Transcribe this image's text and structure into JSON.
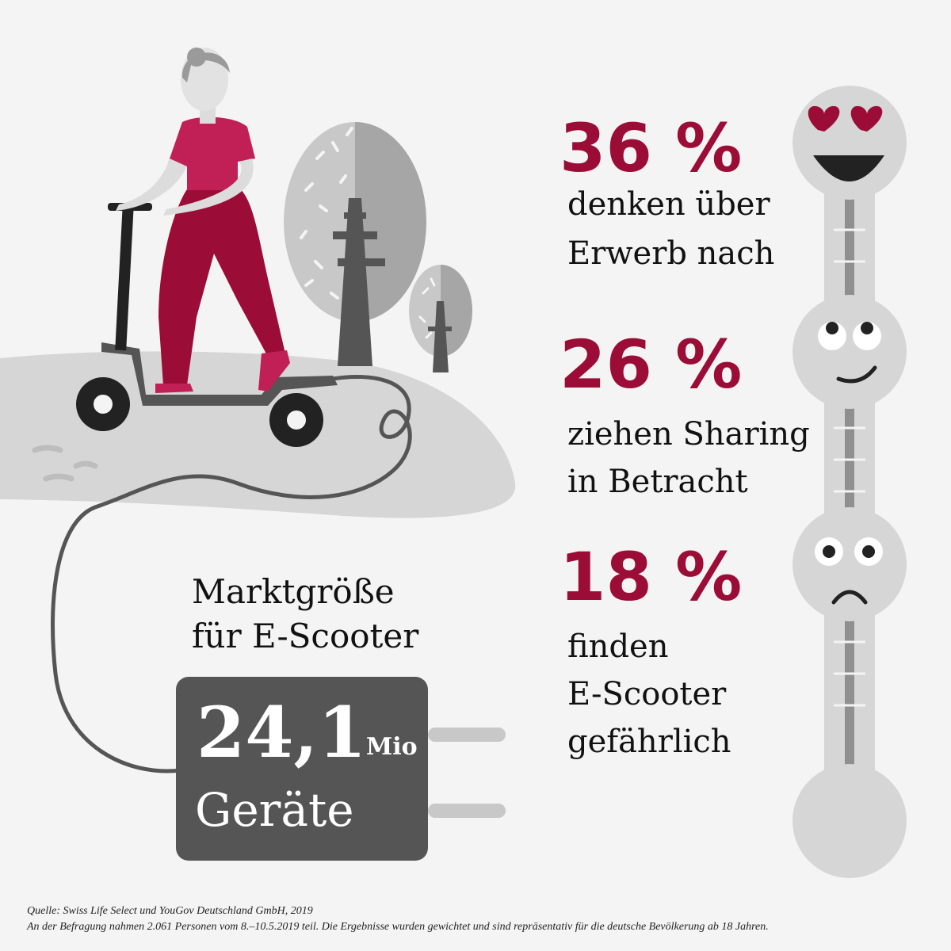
{
  "stats": [
    {
      "value": "36 %",
      "label_line1": "denken über",
      "label_line2": "Erwerb nach",
      "mood": "heart-eyes"
    },
    {
      "value": "26 %",
      "label_line1": "ziehen Sharing",
      "label_line2": "in Betracht",
      "mood": "eyes-up-smile"
    },
    {
      "value": "18 %",
      "label_line1": "finden",
      "label_line2": "E-Scooter",
      "label_line3": "gefährlich",
      "mood": "worried"
    }
  ],
  "market": {
    "title_line1": "Marktgröße",
    "title_line2": "für E-Scooter",
    "value": "24,1",
    "unit_small": "Mio",
    "unit": "Geräte"
  },
  "footer": {
    "source": "Quelle: Swiss Life Select und YouGov Deutschland GmbH, 2019",
    "note": "An der Befragung nahmen 2.061 Personen vom 8.–10.5.2019 teil. Die Ergebnisse wurden gewichtet und sind repräsentativ für die deutsche Bevölkerung ab 18 Jahren."
  },
  "colors": {
    "accent": "#9b0d36",
    "pink": "#c02055",
    "dark_gray": "#555555",
    "light_gray": "#d6d6d6",
    "background": "#f4f4f4"
  }
}
